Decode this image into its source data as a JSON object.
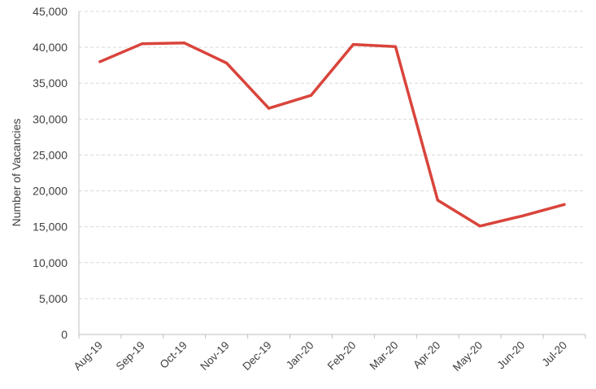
{
  "chart_data": {
    "type": "line",
    "title": "",
    "xlabel": "",
    "ylabel": "Number of Vacancies",
    "categories": [
      "Aug-19",
      "Sep-19",
      "Oct-19",
      "Nov-19",
      "Dec-19",
      "Jan-20",
      "Feb-20",
      "Mar-20",
      "Apr-20",
      "May-20",
      "Jun-20",
      "Jul-20"
    ],
    "series": [
      {
        "color": "#d9443b",
        "values": [
          38000,
          40500,
          40600,
          37800,
          31500,
          33300,
          40400,
          40100,
          18700,
          15100,
          16500,
          18100
        ]
      }
    ],
    "ylim": [
      0,
      45000
    ],
    "yticks": [
      0,
      5000,
      10000,
      15000,
      20000,
      25000,
      30000,
      35000,
      40000,
      45000
    ],
    "ytick_labels": [
      "0",
      "5,000",
      "10,000",
      "15,000",
      "20,000",
      "25,000",
      "30,000",
      "35,000",
      "40,000",
      "45,000"
    ],
    "grid": true,
    "grid_style": "dashed-horizontal",
    "legend": "none"
  }
}
